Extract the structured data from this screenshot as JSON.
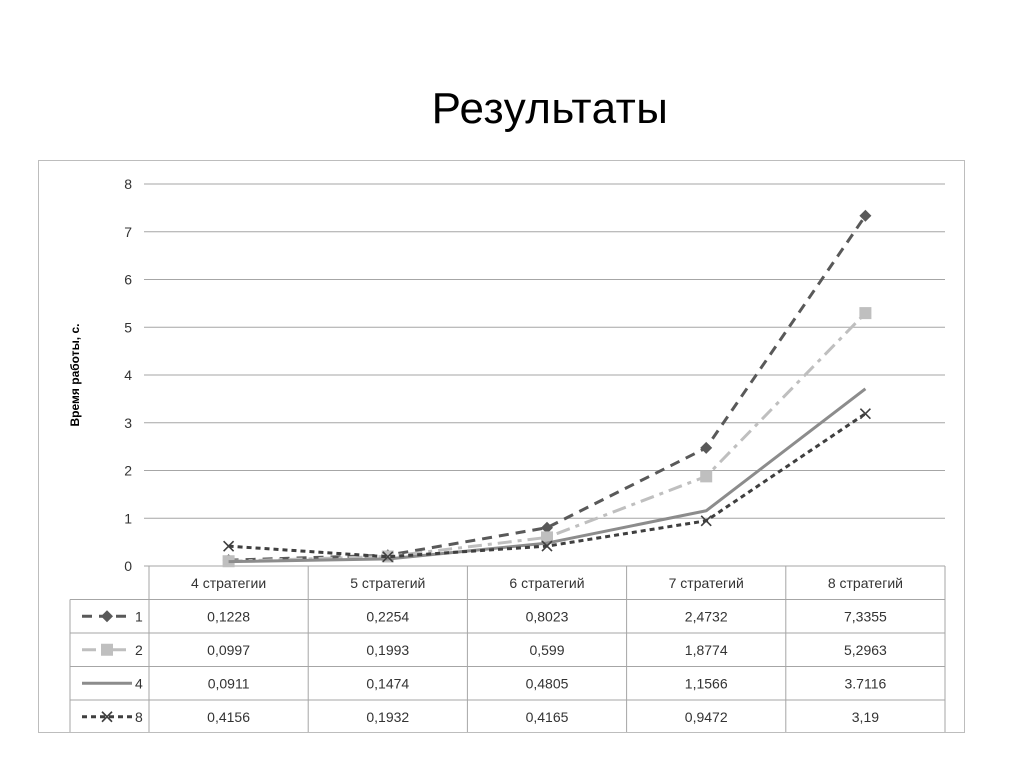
{
  "slide": {
    "title": "Результаты"
  },
  "chart_data": {
    "type": "line",
    "title": "",
    "ylabel": "Время работы, с.",
    "ylim": [
      0,
      8
    ],
    "yticks": [
      "0",
      "1",
      "2",
      "3",
      "4",
      "5",
      "6",
      "7",
      "8"
    ],
    "grid": true,
    "categories": [
      "4 стратегии",
      "5 стратегий",
      "6 стратегий",
      "7 стратегий",
      "8 стратегий"
    ],
    "series": [
      {
        "name": "1",
        "values": [
          0.1228,
          0.2254,
          0.8023,
          2.4732,
          7.3355
        ],
        "labels": [
          "0,1228",
          "0,2254",
          "0,8023",
          "2,4732",
          "7,3355"
        ],
        "color": "#595959",
        "dash": "10,7",
        "marker": "diamond"
      },
      {
        "name": "2",
        "values": [
          0.0997,
          0.1993,
          0.599,
          1.8774,
          5.2963
        ],
        "labels": [
          "0,0997",
          "0,1993",
          "0,599",
          "1,8774",
          "5,2963"
        ],
        "color": "#bfbfbf",
        "dash": "14,6,4,6",
        "marker": "square"
      },
      {
        "name": "4",
        "values": [
          0.0911,
          0.1474,
          0.4805,
          1.1566,
          3.7116
        ],
        "labels": [
          "0,0911",
          "0,1474",
          "0,4805",
          "1,1566",
          "3.7116"
        ],
        "color": "#8c8c8c",
        "dash": "",
        "marker": "none"
      },
      {
        "name": "8",
        "values": [
          0.4156,
          0.1932,
          0.4165,
          0.9472,
          3.19
        ],
        "labels": [
          "0,4156",
          "0,1932",
          "0,4165",
          "0,9472",
          "3,19"
        ],
        "color": "#3f3f3f",
        "dash": "5,4",
        "marker": "x"
      }
    ],
    "data_table": true
  }
}
